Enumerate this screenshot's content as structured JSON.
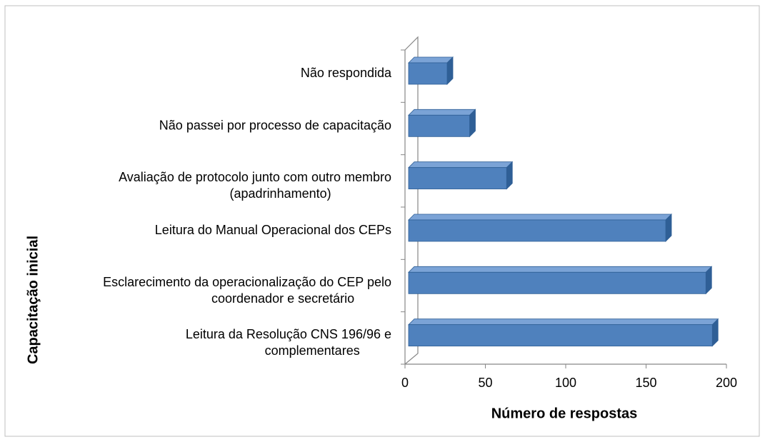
{
  "chart_data": {
    "type": "bar3d_horizontal",
    "y_label": "Capacitação inicial",
    "x_label": "Número de respostas",
    "categories": [
      "Não respondida",
      "Não passei por processo de capacitação",
      "Avaliação de protocolo junto com outro membro\n(apadrinhamento)",
      "Leitura do Manual Operacional dos CEPs",
      "Esclarecimento da operacionalização do CEP pelo\ncoordenador e secretário",
      "Leitura da Resolução CNS 196/96 e\ncomplementares"
    ],
    "values": [
      24,
      38,
      61,
      160,
      185,
      189
    ],
    "color": "#4f81bd",
    "xlim": [
      0,
      200
    ],
    "xticks": [
      0,
      50,
      100,
      150,
      200
    ],
    "grid": false
  }
}
